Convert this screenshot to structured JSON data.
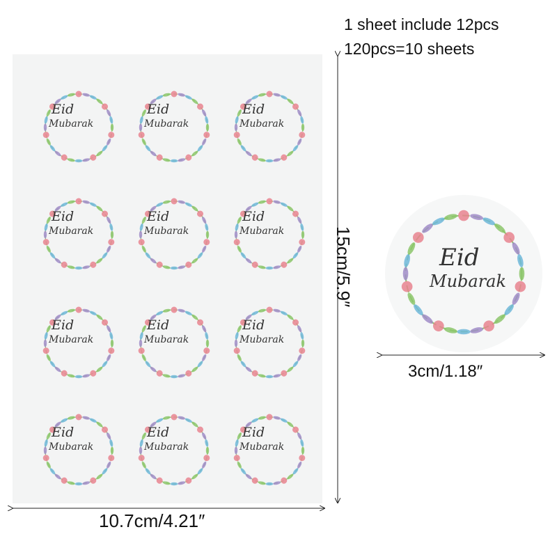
{
  "notes": {
    "line1": "1 sheet include 12pcs",
    "line2": "120pcs=10 sheets"
  },
  "sticker": {
    "eid": "Eid",
    "mubarak": "Mubarak"
  },
  "dimensions": {
    "width": "10.7cm/4.21″",
    "height": "15cm/5.9″",
    "sticker_size": "3cm/1.18″"
  },
  "colors": {
    "sheet": "#f3f4f4",
    "leaf_green": "#8cc56b",
    "flower_pink": "#e8848f",
    "flower_purple": "#a08cc8",
    "leaf_blue": "#6fb7d9"
  }
}
